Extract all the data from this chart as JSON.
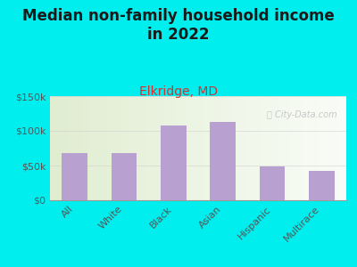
{
  "title": "Median non-family household income\nin 2022",
  "subtitle": "Elkridge, MD",
  "categories": [
    "All",
    "White",
    "Black",
    "Asian",
    "Hispanic",
    "Multirace"
  ],
  "values": [
    68000,
    68000,
    108000,
    113000,
    49000,
    42000
  ],
  "bar_color": "#b8a0d0",
  "background_outer": "#00EEEE",
  "background_inner_left": "#d8e8c8",
  "background_inner_right": "#f0f5e8",
  "title_color": "#1a1a1a",
  "subtitle_color": "#cc3333",
  "tick_label_color": "#555555",
  "ylabel_ticks": [
    "$0",
    "$50k",
    "$100k",
    "$150k"
  ],
  "ylabel_values": [
    0,
    50000,
    100000,
    150000
  ],
  "ylim": [
    0,
    150000
  ],
  "watermark": "ⓘ City-Data.com",
  "title_fontsize": 12,
  "subtitle_fontsize": 10,
  "tick_fontsize": 8
}
